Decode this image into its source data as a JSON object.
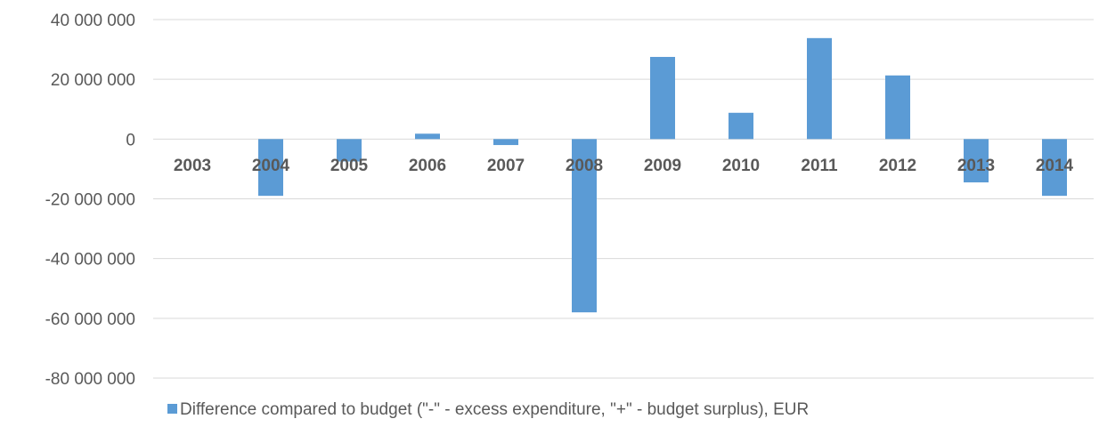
{
  "chart_data": {
    "type": "bar",
    "categories": [
      "2003",
      "2004",
      "2005",
      "2006",
      "2007",
      "2008",
      "2009",
      "2010",
      "2011",
      "2012",
      "2013",
      "2014"
    ],
    "series": [
      {
        "name": "Difference compared to budget (\"-\" - excess expenditure, \"+\" - budget surplus), EUR",
        "values": [
          0,
          -19000000,
          -7500000,
          1800000,
          -2000000,
          -58000000,
          27500000,
          8800000,
          33800000,
          21300000,
          -14500000,
          -19000000
        ]
      }
    ],
    "ylim": [
      -80000000,
      40000000
    ],
    "ytick_values": [
      40000000,
      20000000,
      0,
      -20000000,
      -40000000,
      -60000000,
      -80000000
    ],
    "ytick_labels": [
      "40 000 000",
      "20 000 000",
      "0",
      "-20 000 000",
      "-40 000 000",
      "-60 000 000",
      "-80 000 000"
    ],
    "grid": true,
    "legend_position": "bottom",
    "bar_color": "#5b9bd5",
    "title": "",
    "xlabel": "",
    "ylabel": ""
  }
}
